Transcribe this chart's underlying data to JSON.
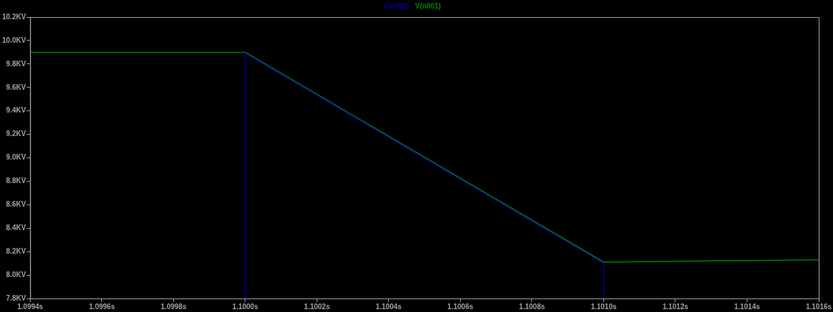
{
  "chart_data": {
    "type": "line",
    "legend": "top",
    "grid": false,
    "marker": "none",
    "line_style": "solid",
    "xlim": [
      1.0994,
      1.1016
    ],
    "xticks": [
      {
        "value": 1.0994,
        "label": "1.0994s"
      },
      {
        "value": 1.0996,
        "label": "1.0996s"
      },
      {
        "value": 1.0998,
        "label": "1.0998s"
      },
      {
        "value": 1.1,
        "label": "1.1000s"
      },
      {
        "value": 1.1002,
        "label": "1.1002s"
      },
      {
        "value": 1.1004,
        "label": "1.1004s"
      },
      {
        "value": 1.1006,
        "label": "1.1006s"
      },
      {
        "value": 1.1008,
        "label": "1.1008s"
      },
      {
        "value": 1.101,
        "label": "1.1010s"
      },
      {
        "value": 1.1012,
        "label": "1.1012s"
      },
      {
        "value": 1.1014,
        "label": "1.1014s"
      },
      {
        "value": 1.1016,
        "label": "1.1016s"
      }
    ],
    "ylim": [
      7.8,
      10.2
    ],
    "yticks": [
      {
        "value": 7.8,
        "label": "7.8KV"
      },
      {
        "value": 8.0,
        "label": "8.0KV"
      },
      {
        "value": 8.2,
        "label": "8.2KV"
      },
      {
        "value": 8.4,
        "label": "8.4KV"
      },
      {
        "value": 8.6,
        "label": "8.6KV"
      },
      {
        "value": 8.8,
        "label": "8.8KV"
      },
      {
        "value": 9.0,
        "label": "9.0KV"
      },
      {
        "value": 9.2,
        "label": "9.2KV"
      },
      {
        "value": 9.4,
        "label": "9.4KV"
      },
      {
        "value": 9.6,
        "label": "9.6KV"
      },
      {
        "value": 9.8,
        "label": "9.8KV"
      },
      {
        "value": 10.0,
        "label": "10.0KV"
      },
      {
        "value": 10.2,
        "label": "10.2KV"
      }
    ],
    "series": [
      {
        "name": "V(n002)",
        "color": "#0000a0",
        "x": [
          1.1,
          1.1,
          1.101,
          1.101
        ],
        "values": [
          7.8,
          9.89,
          8.1,
          7.8
        ]
      },
      {
        "name": "V(n001)",
        "color": "#008000",
        "x": [
          1.0994,
          1.1,
          1.101,
          1.1016
        ],
        "values": [
          9.9,
          9.9,
          8.11,
          8.13
        ]
      }
    ]
  }
}
